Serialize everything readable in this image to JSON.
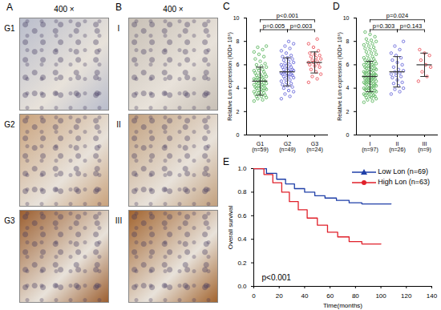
{
  "image_panels": [
    {
      "label": "A",
      "magnification": "400 ×",
      "rows": [
        "G1",
        "G2",
        "G3"
      ]
    },
    {
      "label": "B",
      "magnification": "400 ×",
      "rows": [
        "I",
        "II",
        "III"
      ]
    }
  ],
  "chart_data": [
    {
      "type": "dot_plot",
      "title": "C",
      "ylabel": "Relative Lon expression (IOD× 10⁵)",
      "categories": [
        "G1",
        "G2",
        "G3"
      ],
      "category_sublabels": [
        "(n=59)",
        "(n=49)",
        "(n=24)"
      ],
      "colors": [
        "#4caf50",
        "#5b5bd6",
        "#e8404a"
      ],
      "marker": "open_circle",
      "ylim": [
        0,
        10
      ],
      "yticks": [
        0,
        2,
        4,
        6,
        8,
        10
      ],
      "points": [
        [
          2.9,
          3.0,
          3.1,
          3.2,
          3.3,
          3.3,
          3.4,
          3.5,
          3.5,
          3.6,
          3.6,
          3.7,
          3.8,
          3.8,
          3.9,
          3.9,
          4.0,
          4.0,
          4.1,
          4.1,
          4.2,
          4.2,
          4.3,
          4.3,
          4.4,
          4.4,
          4.5,
          4.5,
          4.6,
          4.6,
          4.7,
          4.7,
          4.8,
          4.8,
          4.9,
          4.9,
          5.0,
          5.0,
          5.1,
          5.2,
          5.2,
          5.3,
          5.4,
          5.5,
          5.5,
          5.6,
          5.7,
          5.8,
          5.9,
          6.0,
          6.1,
          6.3,
          6.5,
          6.7,
          6.9,
          7.1,
          7.3,
          7.5,
          7.6
        ],
        [
          3.1,
          3.3,
          3.5,
          3.7,
          3.8,
          4.0,
          4.1,
          4.2,
          4.3,
          4.4,
          4.5,
          4.6,
          4.7,
          4.8,
          4.9,
          5.0,
          5.0,
          5.1,
          5.1,
          5.2,
          5.2,
          5.3,
          5.3,
          5.4,
          5.4,
          5.5,
          5.5,
          5.6,
          5.6,
          5.7,
          5.8,
          5.8,
          5.9,
          6.0,
          6.0,
          6.1,
          6.2,
          6.3,
          6.4,
          6.5,
          6.6,
          6.7,
          6.8,
          7.0,
          7.2,
          7.4,
          7.6,
          7.8,
          8.0
        ],
        [
          4.5,
          4.8,
          5.0,
          5.2,
          5.4,
          5.6,
          5.8,
          5.9,
          6.0,
          6.1,
          6.2,
          6.2,
          6.3,
          6.4,
          6.5,
          6.6,
          6.7,
          6.8,
          6.9,
          7.0,
          7.2,
          7.5,
          7.8,
          8.2
        ]
      ],
      "means": [
        4.6,
        5.4,
        6.2
      ],
      "sd": [
        1.2,
        1.2,
        0.9
      ],
      "annotations": [
        {
          "text": "p=0.005",
          "from": "G1",
          "to": "G2"
        },
        {
          "text": "p=0.003",
          "from": "G2",
          "to": "G3"
        },
        {
          "text": "p<0.001",
          "from": "G1",
          "to": "G3"
        }
      ]
    },
    {
      "type": "dot_plot",
      "title": "D",
      "ylabel": "Relative Lon expression (IOD× 10⁵)",
      "categories": [
        "I",
        "II",
        "III"
      ],
      "category_sublabels": [
        "(n=97)",
        "(n=26)",
        "(n=9)"
      ],
      "colors": [
        "#4caf50",
        "#5b5bd6",
        "#e8404a"
      ],
      "marker": "open_circle",
      "ylim": [
        0,
        10
      ],
      "yticks": [
        0,
        2,
        4,
        6,
        8,
        10
      ],
      "points": [
        [
          2.8,
          2.9,
          3.0,
          3.1,
          3.2,
          3.2,
          3.3,
          3.3,
          3.4,
          3.4,
          3.5,
          3.5,
          3.6,
          3.6,
          3.7,
          3.7,
          3.8,
          3.8,
          3.9,
          3.9,
          4.0,
          4.0,
          4.0,
          4.1,
          4.1,
          4.2,
          4.2,
          4.3,
          4.3,
          4.4,
          4.4,
          4.4,
          4.5,
          4.5,
          4.6,
          4.6,
          4.6,
          4.7,
          4.7,
          4.8,
          4.8,
          4.8,
          4.9,
          4.9,
          5.0,
          5.0,
          5.0,
          5.1,
          5.1,
          5.2,
          5.2,
          5.2,
          5.3,
          5.3,
          5.4,
          5.4,
          5.5,
          5.5,
          5.6,
          5.6,
          5.7,
          5.7,
          5.8,
          5.8,
          5.9,
          5.9,
          6.0,
          6.0,
          6.1,
          6.1,
          6.2,
          6.2,
          6.3,
          6.3,
          6.4,
          6.5,
          6.5,
          6.6,
          6.7,
          6.8,
          6.9,
          7.0,
          7.1,
          7.2,
          7.3,
          7.4,
          7.5,
          7.6,
          7.7,
          7.8,
          7.9,
          8.0,
          8.1,
          8.2,
          8.4,
          8.6,
          8.8
        ],
        [
          3.5,
          3.7,
          3.9,
          4.0,
          4.2,
          4.4,
          4.5,
          4.7,
          4.9,
          5.0,
          5.1,
          5.2,
          5.3,
          5.4,
          5.5,
          5.6,
          5.8,
          6.0,
          6.2,
          6.4,
          6.6,
          6.8,
          7.0,
          7.3,
          7.6,
          8.0
        ],
        [
          4.6,
          5.0,
          5.4,
          5.8,
          6.0,
          6.4,
          6.8,
          7.0,
          7.3
        ]
      ],
      "means": [
        5.0,
        5.4,
        6.0
      ],
      "sd": [
        1.3,
        1.3,
        1.0
      ],
      "annotations": [
        {
          "text": "p=0.303",
          "from": "I",
          "to": "II"
        },
        {
          "text": "p=0.143",
          "from": "II",
          "to": "III"
        },
        {
          "text": "p=0.024",
          "from": "I",
          "to": "III"
        }
      ]
    },
    {
      "type": "step",
      "title": "E",
      "xlabel": "Time(months)",
      "ylabel": "Overall survival",
      "xlim": [
        0,
        140
      ],
      "xticks": [
        0,
        20,
        40,
        60,
        80,
        100,
        120,
        140
      ],
      "ylim": [
        0,
        1
      ],
      "yticks": [
        {
          "value": 0,
          "label": "0.0"
        },
        0.2,
        0.4,
        0.6,
        0.8,
        {
          "value": 1,
          "label": "1.0"
        }
      ],
      "legend": "top-right",
      "series": [
        {
          "name": "Low Lon (n=69)",
          "color": "#1f3fa8",
          "marker": "triangle",
          "x": [
            0,
            10,
            18,
            25,
            32,
            40,
            48,
            56,
            65,
            75,
            85,
            108
          ],
          "values": [
            1.0,
            0.96,
            0.91,
            0.87,
            0.83,
            0.8,
            0.77,
            0.75,
            0.73,
            0.71,
            0.7,
            0.7
          ]
        },
        {
          "name": "High Lon (n=63)",
          "color": "#e0202a",
          "marker": "circle",
          "x": [
            0,
            8,
            15,
            22,
            28,
            35,
            42,
            50,
            58,
            66,
            75,
            85,
            100
          ],
          "values": [
            1.0,
            0.95,
            0.88,
            0.8,
            0.72,
            0.65,
            0.58,
            0.52,
            0.46,
            0.42,
            0.38,
            0.36,
            0.36
          ]
        }
      ],
      "annotations": [
        {
          "text": "p<0.001"
        }
      ]
    }
  ]
}
